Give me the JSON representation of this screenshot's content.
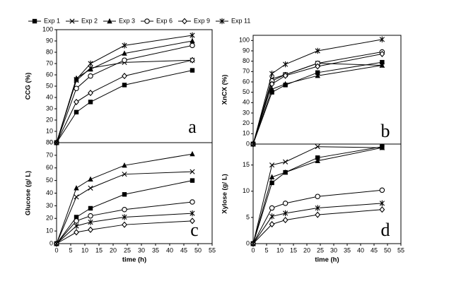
{
  "chart_data": [
    {
      "type": "line",
      "ylabel": "CCG (%)",
      "annotation": "a",
      "x": [
        0,
        7,
        12,
        24,
        48
      ],
      "xlim": [
        0,
        55
      ],
      "ylim": [
        0,
        100
      ],
      "yticks": [
        0,
        10,
        20,
        30,
        40,
        50,
        60,
        70,
        80,
        90,
        100
      ],
      "series": [
        {
          "name": "Exp 1",
          "marker": "square",
          "color": "#000000",
          "values": [
            0,
            27,
            36,
            51,
            64
          ]
        },
        {
          "name": "Exp 2",
          "marker": "x",
          "color": "#000000",
          "values": [
            0,
            55,
            66,
            71,
            73
          ]
        },
        {
          "name": "Exp 3",
          "marker": "triangle",
          "color": "#000000",
          "values": [
            0,
            57,
            65,
            79,
            90
          ]
        },
        {
          "name": "Exp 6",
          "marker": "circle",
          "color": "#000000",
          "values": [
            0,
            48,
            59,
            73,
            86
          ]
        },
        {
          "name": "Exp 9",
          "marker": "diamond",
          "color": "#000000",
          "values": [
            0,
            36,
            44,
            59,
            73
          ]
        },
        {
          "name": "Exp 11",
          "marker": "star",
          "color": "#000000",
          "values": [
            0,
            56,
            70,
            86,
            95
          ]
        }
      ]
    },
    {
      "type": "line",
      "ylabel": "XnCX (%)",
      "annotation": "b",
      "x": [
        0,
        7,
        12,
        24,
        48
      ],
      "xlim": [
        0,
        55
      ],
      "ylim": [
        0,
        105
      ],
      "yticks": [
        0,
        10,
        20,
        30,
        40,
        50,
        60,
        70,
        80,
        90,
        100
      ],
      "series": [
        {
          "values": [
            0,
            50,
            57,
            69,
            79
          ]
        },
        {
          "values": [
            0,
            63,
            67,
            78,
            76
          ]
        },
        {
          "values": [
            0,
            53,
            58,
            66,
            76
          ]
        },
        {
          "values": [
            0,
            61,
            67,
            78,
            89
          ]
        },
        {
          "values": [
            0,
            58,
            66,
            75,
            87
          ]
        },
        {
          "values": [
            0,
            68,
            77,
            90,
            101
          ]
        }
      ]
    },
    {
      "type": "line",
      "ylabel": "Glucose (g/ L)",
      "xlabel": "time (h)",
      "annotation": "c",
      "x": [
        0,
        7,
        12,
        24,
        48
      ],
      "xlim": [
        0,
        55
      ],
      "xticks": [
        0,
        5,
        10,
        15,
        20,
        25,
        30,
        35,
        40,
        45,
        50,
        55
      ],
      "ylim": [
        0,
        80
      ],
      "yticks": [
        0,
        10,
        20,
        30,
        40,
        50,
        60,
        70,
        80
      ],
      "series": [
        {
          "values": [
            0,
            21,
            28,
            39,
            50
          ]
        },
        {
          "values": [
            0,
            37,
            44,
            55,
            57
          ]
        },
        {
          "values": [
            0,
            44,
            51,
            62,
            71
          ]
        },
        {
          "values": [
            0,
            18,
            22,
            27,
            33
          ]
        },
        {
          "values": [
            0,
            9,
            11,
            15,
            18
          ]
        },
        {
          "values": [
            0,
            14,
            17,
            21,
            24
          ]
        }
      ]
    },
    {
      "type": "line",
      "ylabel": "Xylose (g/ L)",
      "xlabel": "time (h)",
      "annotation": "d",
      "x": [
        0,
        7,
        12,
        24,
        48
      ],
      "xlim": [
        0,
        55
      ],
      "xticks": [
        0,
        5,
        10,
        15,
        20,
        25,
        30,
        35,
        40,
        45,
        50,
        55
      ],
      "ylim": [
        0,
        19
      ],
      "yticks": [
        0,
        5,
        10,
        15
      ],
      "series": [
        {
          "values": [
            0,
            11.6,
            13.6,
            16.4,
            18.5
          ]
        },
        {
          "values": [
            0,
            15,
            15.6,
            18.5,
            18.3
          ]
        },
        {
          "values": [
            0,
            12.7,
            13.6,
            15.8,
            18.3
          ]
        },
        {
          "values": [
            0,
            6.8,
            7.7,
            9.0,
            10.2
          ]
        },
        {
          "values": [
            0,
            3.7,
            4.5,
            5.5,
            6.5
          ]
        },
        {
          "values": [
            0,
            5.2,
            5.8,
            6.8,
            7.7
          ]
        }
      ]
    }
  ]
}
